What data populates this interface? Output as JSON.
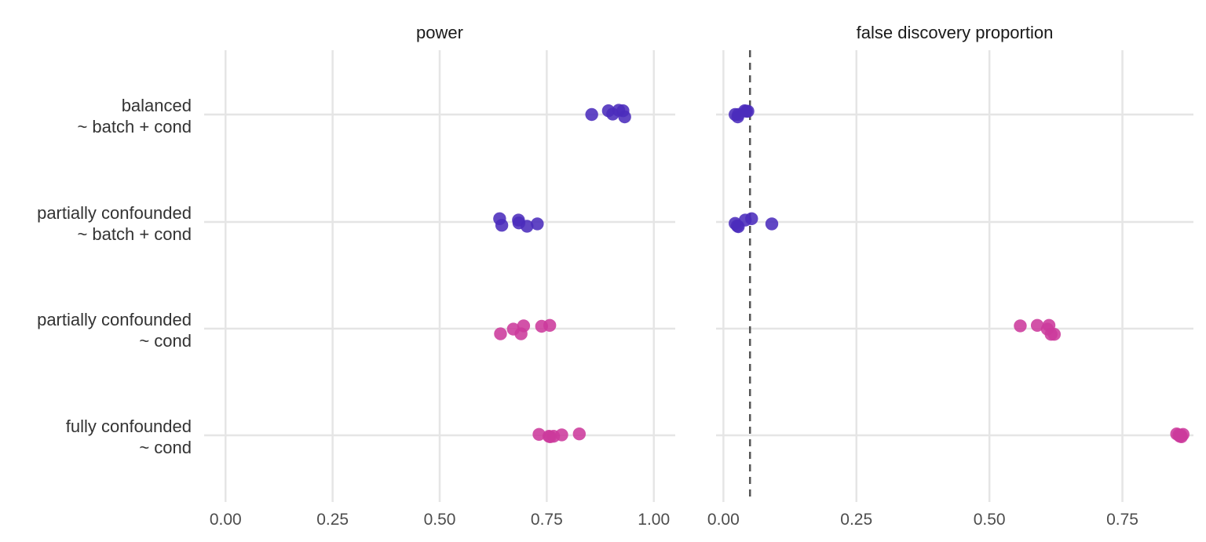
{
  "chart_data": {
    "type": "scatter",
    "ref_line_x": 0.05,
    "ref_line_panel": "false discovery proportion",
    "rows": [
      {
        "line1": "balanced",
        "line2": "~ batch + cond"
      },
      {
        "line1": "partially confounded",
        "line2": "~ batch + cond"
      },
      {
        "line1": "partially confounded",
        "line2": "~ cond"
      },
      {
        "line1": "fully confounded",
        "line2": "~ cond"
      }
    ],
    "colors": {
      "~ batch + cond": "#4b2cbc",
      "~ cond": "#cc3a9c"
    },
    "panels": [
      {
        "title": "power",
        "xlim": [
          -0.05,
          1.05
        ],
        "xticks": [
          "0.00",
          "0.25",
          "0.50",
          "0.75",
          "1.00"
        ],
        "xtick_values": [
          0,
          0.25,
          0.5,
          0.75,
          1.0
        ],
        "points": [
          [
            {
              "x": 0.855,
              "j": 0.0
            },
            {
              "x": 0.894,
              "j": 0.08
            },
            {
              "x": 0.904,
              "j": 0.01
            },
            {
              "x": 0.918,
              "j": 0.09
            },
            {
              "x": 0.928,
              "j": 0.08
            },
            {
              "x": 0.932,
              "j": -0.05
            }
          ],
          [
            {
              "x": 0.64,
              "j": 0.07
            },
            {
              "x": 0.645,
              "j": -0.07
            },
            {
              "x": 0.684,
              "j": 0.04
            },
            {
              "x": 0.685,
              "j": -0.02
            },
            {
              "x": 0.704,
              "j": -0.09
            },
            {
              "x": 0.728,
              "j": -0.04
            }
          ],
          [
            {
              "x": 0.642,
              "j": -0.11
            },
            {
              "x": 0.672,
              "j": -0.01
            },
            {
              "x": 0.69,
              "j": -0.11
            },
            {
              "x": 0.696,
              "j": 0.06
            },
            {
              "x": 0.738,
              "j": 0.05
            },
            {
              "x": 0.757,
              "j": 0.07
            }
          ],
          [
            {
              "x": 0.732,
              "j": 0.02
            },
            {
              "x": 0.755,
              "j": -0.02
            },
            {
              "x": 0.758,
              "j": -0.03
            },
            {
              "x": 0.766,
              "j": -0.02
            },
            {
              "x": 0.785,
              "j": 0.01
            },
            {
              "x": 0.826,
              "j": 0.03
            }
          ]
        ]
      },
      {
        "title": "false discovery proportion",
        "xlim": [
          -0.0138,
          0.8835
        ],
        "xticks": [
          "0.00",
          "0.25",
          "0.50",
          "0.75"
        ],
        "xtick_values": [
          0,
          0.25,
          0.5,
          0.75
        ],
        "points": [
          [
            {
              "x": 0.022,
              "j": 0.0
            },
            {
              "x": 0.027,
              "j": -0.05
            },
            {
              "x": 0.028,
              "j": 0.0
            },
            {
              "x": 0.04,
              "j": 0.08
            },
            {
              "x": 0.043,
              "j": 0.07
            },
            {
              "x": 0.046,
              "j": 0.07
            }
          ],
          [
            {
              "x": 0.022,
              "j": -0.03
            },
            {
              "x": 0.026,
              "j": -0.08
            },
            {
              "x": 0.028,
              "j": -0.1
            },
            {
              "x": 0.041,
              "j": 0.04
            },
            {
              "x": 0.053,
              "j": 0.07
            },
            {
              "x": 0.091,
              "j": -0.04
            }
          ],
          [
            {
              "x": 0.558,
              "j": 0.06
            },
            {
              "x": 0.59,
              "j": 0.07
            },
            {
              "x": 0.609,
              "j": -0.01
            },
            {
              "x": 0.612,
              "j": 0.07
            },
            {
              "x": 0.616,
              "j": -0.12
            },
            {
              "x": 0.622,
              "j": -0.12
            }
          ],
          [
            {
              "x": 0.852,
              "j": 0.03
            },
            {
              "x": 0.856,
              "j": 0.01
            },
            {
              "x": 0.858,
              "j": -0.02
            },
            {
              "x": 0.86,
              "j": 0.0
            },
            {
              "x": 0.861,
              "j": -0.03
            },
            {
              "x": 0.864,
              "j": 0.02
            }
          ]
        ]
      }
    ]
  }
}
